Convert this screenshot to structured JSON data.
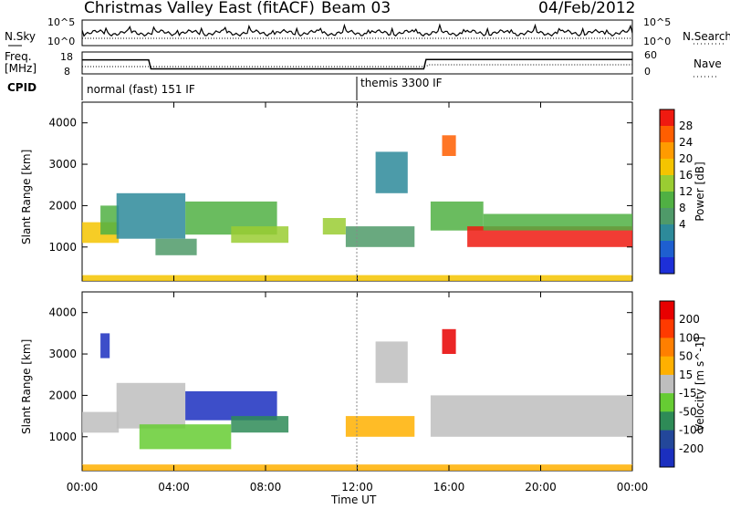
{
  "header": {
    "station": "Christmas Valley East (fitACF)",
    "beam": "Beam 03",
    "date": "04/Feb/2012"
  },
  "noise_panel": {
    "left_label": "N.Sky",
    "right_label": "N.Search",
    "left_ticks": [
      "10^5",
      "10^0"
    ],
    "right_ticks": [
      "10^5",
      "10^0"
    ]
  },
  "freq_panel": {
    "left_label_line1": "Freq.",
    "left_label_line2": "[MHz]",
    "right_label": "Nave",
    "left_ticks": [
      "18",
      "8"
    ],
    "right_ticks": [
      "60",
      "0"
    ],
    "freq_series": [
      {
        "t": 0,
        "mhz": 14.4
      },
      {
        "t": 2.9,
        "mhz": 14.4
      },
      {
        "t": 3.0,
        "mhz": 10.3
      },
      {
        "t": 14.9,
        "mhz": 10.3
      },
      {
        "t": 15.0,
        "mhz": 14.6
      },
      {
        "t": 24,
        "mhz": 14.6
      }
    ],
    "nave_series": [
      {
        "t": 0,
        "nave": 20
      },
      {
        "t": 15.0,
        "nave": 20
      },
      {
        "t": 15.1,
        "nave": 25
      },
      {
        "t": 24,
        "nave": 25
      }
    ]
  },
  "cpid": {
    "label": "CPID",
    "modes": [
      {
        "start": 0,
        "name": "normal (fast) 151 IF"
      },
      {
        "start": 12,
        "name": "themis 3300 IF"
      }
    ]
  },
  "chart_data": [
    {
      "type": "heatmap",
      "title": "Power",
      "ylabel": "Slant Range [km]",
      "xlabel": "Time UT",
      "xlim": [
        0,
        24
      ],
      "ylim": [
        180,
        4500
      ],
      "yticks": [
        "1000",
        "2000",
        "3000",
        "4000"
      ],
      "xticks": [
        "00:00",
        "04:00",
        "08:00",
        "12:00",
        "16:00",
        "20:00",
        "00:00"
      ],
      "colorbar": {
        "label": "Power [dB]",
        "ticks": [
          "28",
          "24",
          "20",
          "16",
          "12",
          "8",
          "4"
        ],
        "colors": [
          "#1d2fd8",
          "#1e5fd0",
          "#2d8a9a",
          "#4f9a69",
          "#50b043",
          "#9acd32",
          "#f5c400",
          "#ff9b00",
          "#ff5e00",
          "#ef1a10"
        ]
      },
      "regions": [
        {
          "t0": 0.0,
          "t1": 1.6,
          "r0": 1100,
          "r1": 1600,
          "level": 6
        },
        {
          "t0": 0.8,
          "t1": 1.6,
          "r0": 1300,
          "r1": 2000,
          "level": 4
        },
        {
          "t0": 1.5,
          "t1": 4.5,
          "r0": 1200,
          "r1": 2300,
          "level": 2
        },
        {
          "t0": 3.2,
          "t1": 5.0,
          "r0": 800,
          "r1": 1200,
          "level": 3
        },
        {
          "t0": 4.5,
          "t1": 8.5,
          "r0": 1300,
          "r1": 2100,
          "level": 4
        },
        {
          "t0": 6.5,
          "t1": 9.0,
          "r0": 1100,
          "r1": 1500,
          "level": 5
        },
        {
          "t0": 11.5,
          "t1": 14.5,
          "r0": 1000,
          "r1": 1500,
          "level": 3
        },
        {
          "t0": 10.5,
          "t1": 11.5,
          "r0": 1300,
          "r1": 1700,
          "level": 5
        },
        {
          "t0": 12.8,
          "t1": 14.2,
          "r0": 2300,
          "r1": 3300,
          "level": 2
        },
        {
          "t0": 15.7,
          "t1": 16.3,
          "r0": 3200,
          "r1": 3700,
          "level": 8
        },
        {
          "t0": 15.2,
          "t1": 17.5,
          "r0": 1400,
          "r1": 2100,
          "level": 4
        },
        {
          "t0": 16.8,
          "t1": 24.0,
          "r0": 1000,
          "r1": 1500,
          "level": 9
        },
        {
          "t0": 17.5,
          "t1": 24.0,
          "r0": 1400,
          "r1": 1800,
          "level": 4
        },
        {
          "t0": 0.0,
          "t1": 24.0,
          "r0": 180,
          "r1": 320,
          "level": 6
        }
      ]
    },
    {
      "type": "heatmap",
      "title": "Velocity",
      "ylabel": "Slant Range [km]",
      "xlabel": "Time UT",
      "xlim": [
        0,
        24
      ],
      "ylim": [
        180,
        4500
      ],
      "yticks": [
        "1000",
        "2000",
        "3000",
        "4000"
      ],
      "xticks": [
        "00:00",
        "04:00",
        "08:00",
        "12:00",
        "16:00",
        "20:00",
        "00:00"
      ],
      "colorbar": {
        "label": "Velocity [m s^-1]",
        "ticks": [
          "200",
          "100",
          "50",
          "15",
          "-15",
          "-50",
          "-100",
          "-200"
        ],
        "colors": [
          "#1b2fbf",
          "#23479a",
          "#2e8b57",
          "#66cc33",
          "#bebebe",
          "#ffb000",
          "#ff7f00",
          "#ff3a00",
          "#e80000"
        ]
      },
      "regions": [
        {
          "t0": 0.0,
          "t1": 1.6,
          "r0": 1100,
          "r1": 1600,
          "level": 4
        },
        {
          "t0": 0.8,
          "t1": 1.2,
          "r0": 2900,
          "r1": 3500,
          "level": 0
        },
        {
          "t0": 1.5,
          "t1": 4.5,
          "r0": 1200,
          "r1": 2300,
          "level": 4
        },
        {
          "t0": 2.5,
          "t1": 6.5,
          "r0": 700,
          "r1": 1300,
          "level": 3
        },
        {
          "t0": 4.5,
          "t1": 8.5,
          "r0": 1400,
          "r1": 2100,
          "level": 0
        },
        {
          "t0": 6.5,
          "t1": 9.0,
          "r0": 1100,
          "r1": 1500,
          "level": 2
        },
        {
          "t0": 11.5,
          "t1": 14.5,
          "r0": 1000,
          "r1": 1500,
          "level": 5
        },
        {
          "t0": 12.8,
          "t1": 14.2,
          "r0": 2300,
          "r1": 3300,
          "level": 4
        },
        {
          "t0": 15.7,
          "t1": 16.3,
          "r0": 3000,
          "r1": 3600,
          "level": 8
        },
        {
          "t0": 15.2,
          "t1": 24.0,
          "r0": 1000,
          "r1": 2000,
          "level": 4
        },
        {
          "t0": 0.0,
          "t1": 24.0,
          "r0": 180,
          "r1": 330,
          "level": 5
        }
      ]
    }
  ]
}
